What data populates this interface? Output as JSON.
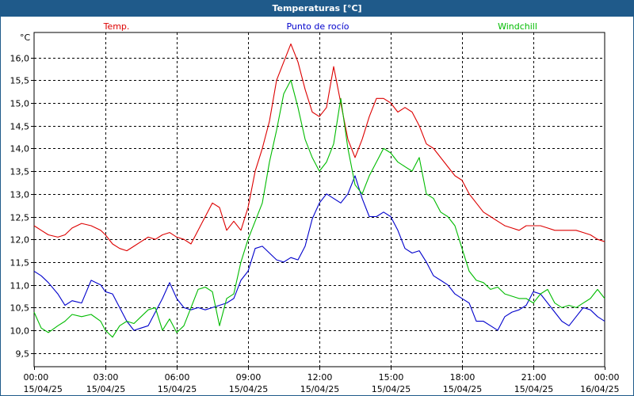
{
  "chart_data": {
    "type": "line",
    "title": "Temperaturas [°C]",
    "ylabel": "°C",
    "ylim": [
      9.2,
      16.55
    ],
    "xlim": [
      0,
      24
    ],
    "grid": true,
    "yticks": [
      "9,5",
      "10,0",
      "10,5",
      "11,0",
      "11,5",
      "12,0",
      "12,5",
      "13,0",
      "13,5",
      "14,0",
      "14,5",
      "15,0",
      "15,5",
      "16,0"
    ],
    "ytick_values": [
      9.5,
      10.0,
      10.5,
      11.0,
      11.5,
      12.0,
      12.5,
      13.0,
      13.5,
      14.0,
      14.5,
      15.0,
      15.5,
      16.0
    ],
    "xticks": [
      {
        "h": 0,
        "time": "00:00",
        "date": "15/04/25"
      },
      {
        "h": 3,
        "time": "03:00",
        "date": "15/04/25"
      },
      {
        "h": 6,
        "time": "06:00",
        "date": "15/04/25"
      },
      {
        "h": 9,
        "time": "09:00",
        "date": "15/04/25"
      },
      {
        "h": 12,
        "time": "12:00",
        "date": "15/04/25"
      },
      {
        "h": 15,
        "time": "15:00",
        "date": "15/04/25"
      },
      {
        "h": 18,
        "time": "18:00",
        "date": "15/04/25"
      },
      {
        "h": 21,
        "time": "21:00",
        "date": "15/04/25"
      },
      {
        "h": 24,
        "time": "00:00",
        "date": "16/04/25"
      }
    ],
    "series": [
      {
        "name": "Temp.",
        "color": "#dd0000",
        "x": [
          0,
          0.3,
          0.6,
          1.0,
          1.3,
          1.6,
          2.0,
          2.4,
          2.8,
          3.0,
          3.3,
          3.6,
          3.9,
          4.2,
          4.5,
          4.8,
          5.1,
          5.4,
          5.7,
          6.0,
          6.3,
          6.6,
          6.9,
          7.2,
          7.5,
          7.8,
          8.1,
          8.4,
          8.7,
          9.0,
          9.3,
          9.6,
          9.9,
          10.2,
          10.5,
          10.8,
          11.1,
          11.4,
          11.7,
          12.0,
          12.3,
          12.6,
          12.9,
          13.2,
          13.5,
          13.8,
          14.1,
          14.4,
          14.7,
          15.0,
          15.3,
          15.6,
          15.9,
          16.2,
          16.5,
          16.8,
          17.1,
          17.4,
          17.7,
          18.0,
          18.3,
          18.6,
          18.9,
          19.2,
          19.5,
          19.8,
          20.1,
          20.4,
          20.7,
          21.0,
          21.3,
          21.6,
          21.9,
          22.2,
          22.5,
          22.8,
          23.1,
          23.4,
          23.7,
          24.0
        ],
        "values": [
          12.3,
          12.2,
          12.1,
          12.05,
          12.1,
          12.25,
          12.35,
          12.3,
          12.2,
          12.1,
          11.9,
          11.8,
          11.75,
          11.85,
          11.95,
          12.05,
          12.0,
          12.1,
          12.15,
          12.05,
          12.0,
          11.9,
          12.2,
          12.5,
          12.8,
          12.7,
          12.2,
          12.4,
          12.2,
          12.7,
          13.5,
          14.0,
          14.6,
          15.5,
          15.9,
          16.3,
          15.9,
          15.3,
          14.8,
          14.7,
          14.9,
          15.8,
          15.0,
          14.2,
          13.8,
          14.2,
          14.7,
          15.1,
          15.1,
          15.0,
          14.8,
          14.9,
          14.8,
          14.5,
          14.1,
          14.0,
          13.8,
          13.6,
          13.4,
          13.3,
          13.0,
          12.8,
          12.6,
          12.5,
          12.4,
          12.3,
          12.25,
          12.2,
          12.3,
          12.3,
          12.3,
          12.25,
          12.2,
          12.2,
          12.2,
          12.2,
          12.15,
          12.1,
          12.0,
          11.95
        ]
      },
      {
        "name": "Punto de rocío",
        "color": "#0000cc",
        "x": [
          0,
          0.3,
          0.6,
          1.0,
          1.3,
          1.6,
          2.0,
          2.4,
          2.8,
          3.0,
          3.3,
          3.6,
          3.9,
          4.2,
          4.5,
          4.8,
          5.1,
          5.4,
          5.7,
          6.0,
          6.3,
          6.6,
          6.9,
          7.2,
          7.5,
          7.8,
          8.1,
          8.4,
          8.7,
          9.0,
          9.3,
          9.6,
          9.9,
          10.2,
          10.5,
          10.8,
          11.1,
          11.4,
          11.7,
          12.0,
          12.3,
          12.6,
          12.9,
          13.2,
          13.5,
          13.8,
          14.1,
          14.4,
          14.7,
          15.0,
          15.3,
          15.6,
          15.9,
          16.2,
          16.5,
          16.8,
          17.1,
          17.4,
          17.7,
          18.0,
          18.3,
          18.6,
          18.9,
          19.2,
          19.5,
          19.8,
          20.1,
          20.4,
          20.7,
          21.0,
          21.3,
          21.6,
          21.9,
          22.2,
          22.5,
          22.8,
          23.1,
          23.4,
          23.7,
          24.0
        ],
        "values": [
          11.3,
          11.2,
          11.05,
          10.8,
          10.55,
          10.65,
          10.6,
          11.1,
          11.0,
          10.85,
          10.8,
          10.5,
          10.2,
          10.0,
          10.05,
          10.1,
          10.4,
          10.7,
          11.05,
          10.7,
          10.5,
          10.45,
          10.5,
          10.45,
          10.5,
          10.55,
          10.6,
          10.7,
          11.1,
          11.3,
          11.8,
          11.85,
          11.7,
          11.55,
          11.5,
          11.6,
          11.55,
          11.85,
          12.45,
          12.8,
          13.0,
          12.9,
          12.8,
          13.0,
          13.4,
          12.9,
          12.5,
          12.5,
          12.6,
          12.5,
          12.2,
          11.8,
          11.7,
          11.75,
          11.5,
          11.2,
          11.1,
          11.0,
          10.8,
          10.7,
          10.6,
          10.2,
          10.2,
          10.1,
          10.0,
          10.3,
          10.4,
          10.45,
          10.55,
          10.85,
          10.8,
          10.6,
          10.4,
          10.2,
          10.1,
          10.3,
          10.5,
          10.45,
          10.3,
          10.2
        ]
      },
      {
        "name": "Windchill",
        "color": "#00bb00",
        "x": [
          0,
          0.3,
          0.6,
          1.0,
          1.3,
          1.6,
          2.0,
          2.4,
          2.8,
          3.0,
          3.3,
          3.6,
          3.9,
          4.2,
          4.5,
          4.8,
          5.1,
          5.4,
          5.7,
          6.0,
          6.3,
          6.6,
          6.9,
          7.2,
          7.5,
          7.8,
          8.1,
          8.4,
          8.7,
          9.0,
          9.3,
          9.6,
          9.9,
          10.2,
          10.5,
          10.8,
          11.1,
          11.4,
          11.7,
          12.0,
          12.3,
          12.6,
          12.9,
          13.2,
          13.5,
          13.8,
          14.1,
          14.4,
          14.7,
          15.0,
          15.3,
          15.6,
          15.9,
          16.2,
          16.5,
          16.8,
          17.1,
          17.4,
          17.7,
          18.0,
          18.3,
          18.6,
          18.9,
          19.2,
          19.5,
          19.8,
          20.1,
          20.4,
          20.7,
          21.0,
          21.3,
          21.6,
          21.9,
          22.2,
          22.5,
          22.8,
          23.1,
          23.4,
          23.7,
          24.0
        ],
        "values": [
          10.4,
          10.05,
          9.95,
          10.1,
          10.2,
          10.35,
          10.3,
          10.35,
          10.2,
          10.0,
          9.85,
          10.1,
          10.2,
          10.15,
          10.3,
          10.45,
          10.5,
          10.0,
          10.25,
          9.95,
          10.1,
          10.5,
          10.9,
          10.95,
          10.85,
          10.1,
          10.7,
          10.8,
          11.5,
          12.0,
          12.4,
          12.8,
          13.7,
          14.4,
          15.2,
          15.5,
          14.9,
          14.2,
          13.8,
          13.5,
          13.7,
          14.1,
          15.1,
          14.0,
          13.2,
          13.0,
          13.4,
          13.7,
          14.0,
          13.9,
          13.7,
          13.6,
          13.5,
          13.8,
          13.0,
          12.9,
          12.6,
          12.5,
          12.3,
          11.8,
          11.3,
          11.1,
          11.05,
          10.9,
          10.95,
          10.8,
          10.75,
          10.7,
          10.7,
          10.6,
          10.8,
          10.9,
          10.6,
          10.5,
          10.55,
          10.5,
          10.6,
          10.7,
          10.9,
          10.7
        ]
      }
    ]
  }
}
